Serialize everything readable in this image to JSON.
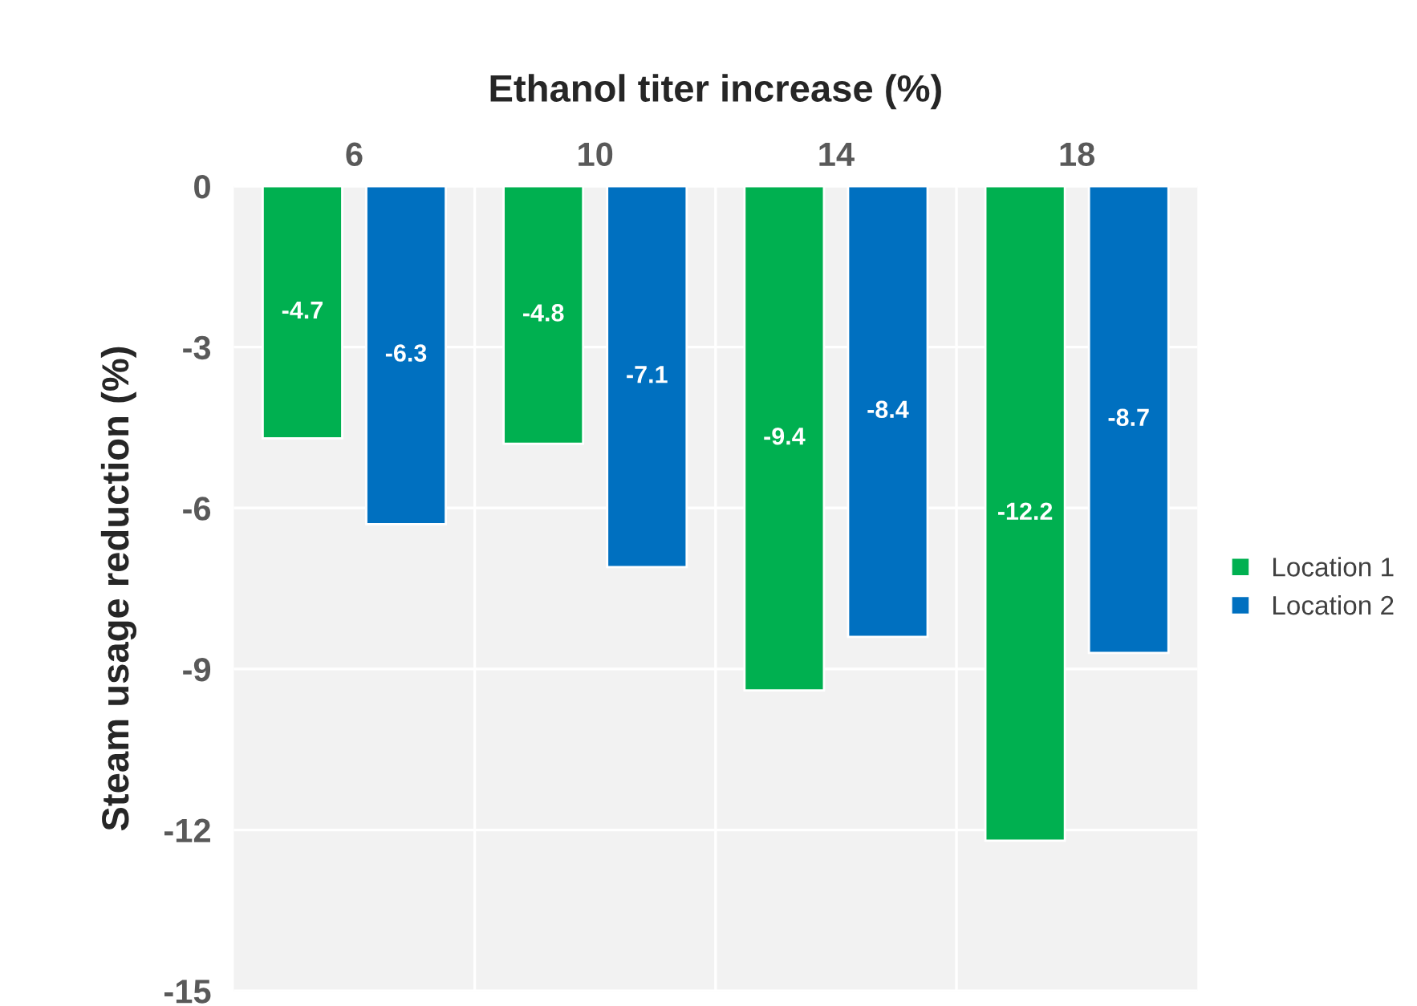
{
  "chart_data": {
    "type": "bar",
    "xlabel": "Ethanol titer increase (%)",
    "ylabel": "Steam usage reduction (%)",
    "categories": [
      "6",
      "10",
      "14",
      "18"
    ],
    "series": [
      {
        "name": "Location 1",
        "color": "#00b050",
        "values": [
          -4.7,
          -4.8,
          -9.4,
          -12.2
        ]
      },
      {
        "name": "Location 2",
        "color": "#0070c0",
        "values": [
          -6.3,
          -7.1,
          -8.4,
          -8.7
        ]
      }
    ],
    "ylim": [
      -15,
      0
    ],
    "yticks": [
      {
        "value": 0,
        "label": "0"
      },
      {
        "value": -3,
        "label": "-3"
      },
      {
        "value": -6,
        "label": "-6"
      },
      {
        "value": -9,
        "label": "-9"
      },
      {
        "value": -12,
        "label": "-12"
      },
      {
        "value": -15,
        "label": "-15"
      }
    ],
    "grid": true,
    "legend": "right",
    "data_labels": true
  }
}
